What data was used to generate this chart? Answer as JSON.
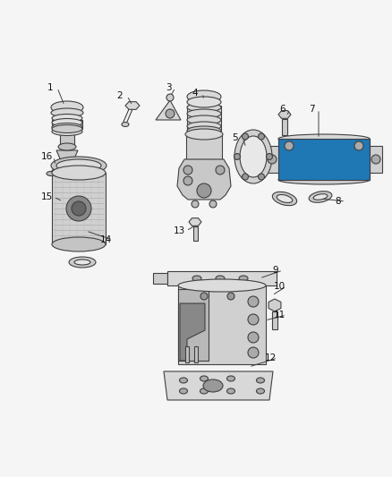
{
  "bg_color": "#f5f5f5",
  "line_color": "#404040",
  "fill_color": "#e0e0e0",
  "dark_fill": "#b0b0b0",
  "text_color": "#111111",
  "fig_width": 4.38,
  "fig_height": 5.33,
  "dpi": 100
}
